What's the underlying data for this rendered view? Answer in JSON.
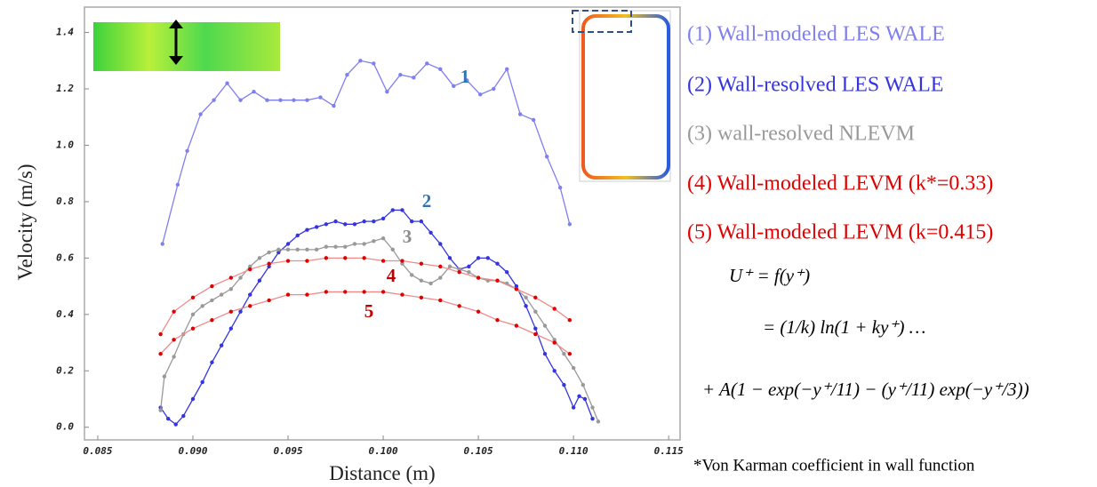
{
  "chart_data": {
    "type": "line",
    "x_label": "Distance (m)",
    "y_label": "Velocity (m/s)",
    "xlim": [
      0.0843,
      0.1156
    ],
    "ylim": [
      -0.045,
      1.49
    ],
    "xticks": [
      0.085,
      {
        "value": 0.09,
        "label": "0.090"
      },
      0.095,
      {
        "value": 0.1,
        "label": "0.100"
      },
      0.105,
      {
        "value": 0.11,
        "label": "0.110"
      },
      0.115
    ],
    "yticks": [
      {
        "value": 0,
        "label": "0.0"
      },
      0.2,
      0.4,
      0.6,
      0.8,
      {
        "value": 1,
        "label": "1.0"
      },
      1.2,
      1.4
    ],
    "grid": false,
    "series": [
      {
        "name": "(1) Wall-modeled LES WALE",
        "label": "1",
        "color": "#7f7ff0",
        "label_color": "#2e75b6",
        "x": [
          0.0884,
          0.0892,
          0.0897,
          0.0904,
          0.0911,
          0.0918,
          0.0925,
          0.0932,
          0.0939,
          0.0946,
          0.0953,
          0.096,
          0.0967,
          0.0974,
          0.0981,
          0.0988,
          0.0995,
          0.1002,
          0.1009,
          0.1016,
          0.1023,
          0.103,
          0.1037,
          0.1044,
          0.1051,
          0.1058,
          0.1065,
          0.1072,
          0.1079,
          0.1086,
          0.1093,
          0.1098
        ],
        "values": [
          0.65,
          0.86,
          0.98,
          1.11,
          1.16,
          1.22,
          1.16,
          1.19,
          1.16,
          1.16,
          1.16,
          1.16,
          1.17,
          1.14,
          1.25,
          1.3,
          1.29,
          1.19,
          1.25,
          1.24,
          1.29,
          1.27,
          1.21,
          1.23,
          1.18,
          1.2,
          1.27,
          1.11,
          1.09,
          0.96,
          0.85,
          0.72
        ]
      },
      {
        "name": "(2) Wall-resolved LES WALE",
        "label": "2",
        "color": "#3535e0",
        "label_color": "#2e75b6",
        "x": [
          0.0883,
          0.0887,
          0.0891,
          0.0895,
          0.09,
          0.0905,
          0.091,
          0.0915,
          0.092,
          0.0925,
          0.093,
          0.0935,
          0.094,
          0.0945,
          0.095,
          0.0955,
          0.096,
          0.0965,
          0.097,
          0.0975,
          0.098,
          0.0985,
          0.099,
          0.0995,
          0.1,
          0.1005,
          0.101,
          0.1015,
          0.102,
          0.1025,
          0.103,
          0.1035,
          0.104,
          0.1045,
          0.105,
          0.1055,
          0.106,
          0.1065,
          0.107,
          0.1075,
          0.108,
          0.1085,
          0.109,
          0.1095,
          0.11,
          0.1103,
          0.1106,
          0.111
        ],
        "values": [
          0.07,
          0.03,
          0.01,
          0.04,
          0.1,
          0.16,
          0.23,
          0.29,
          0.35,
          0.41,
          0.47,
          0.52,
          0.57,
          0.62,
          0.65,
          0.68,
          0.7,
          0.71,
          0.72,
          0.73,
          0.72,
          0.72,
          0.73,
          0.73,
          0.74,
          0.77,
          0.77,
          0.73,
          0.73,
          0.69,
          0.65,
          0.6,
          0.56,
          0.57,
          0.6,
          0.6,
          0.58,
          0.55,
          0.5,
          0.43,
          0.35,
          0.26,
          0.2,
          0.15,
          0.07,
          0.11,
          0.1,
          0.03
        ]
      },
      {
        "name": "(3) wall-resolved NLEVM",
        "label": "3",
        "color": "#999999",
        "label_color": "#8c8c8c",
        "x": [
          0.0883,
          0.0885,
          0.089,
          0.0895,
          0.09,
          0.0905,
          0.091,
          0.0915,
          0.092,
          0.0925,
          0.093,
          0.0935,
          0.094,
          0.0945,
          0.095,
          0.0955,
          0.096,
          0.0965,
          0.097,
          0.0975,
          0.098,
          0.0985,
          0.099,
          0.0995,
          0.1,
          0.1005,
          0.101,
          0.1015,
          0.102,
          0.1025,
          0.103,
          0.1035,
          0.104,
          0.1045,
          0.105,
          0.1055,
          0.106,
          0.1065,
          0.107,
          0.1075,
          0.108,
          0.1085,
          0.109,
          0.1095,
          0.11,
          0.1105,
          0.111,
          0.1113
        ],
        "values": [
          0.06,
          0.18,
          0.25,
          0.33,
          0.4,
          0.43,
          0.45,
          0.47,
          0.49,
          0.53,
          0.57,
          0.6,
          0.62,
          0.63,
          0.63,
          0.63,
          0.63,
          0.63,
          0.64,
          0.64,
          0.64,
          0.65,
          0.65,
          0.66,
          0.67,
          0.63,
          0.58,
          0.54,
          0.52,
          0.51,
          0.53,
          0.57,
          0.56,
          0.55,
          0.53,
          0.52,
          0.52,
          0.51,
          0.49,
          0.46,
          0.41,
          0.36,
          0.31,
          0.26,
          0.21,
          0.15,
          0.07,
          0.02
        ]
      },
      {
        "name": "(4) Wall-modeled LEVM (k*=0.33)",
        "label": "4",
        "color": "#e00000",
        "line_color": "#f08a8a",
        "label_color": "#c00000",
        "x": [
          0.0883,
          0.089,
          0.09,
          0.091,
          0.092,
          0.093,
          0.094,
          0.095,
          0.096,
          0.097,
          0.098,
          0.099,
          0.1,
          0.101,
          0.102,
          0.103,
          0.104,
          0.105,
          0.106,
          0.107,
          0.108,
          0.109,
          0.1098
        ],
        "values": [
          0.33,
          0.41,
          0.46,
          0.5,
          0.53,
          0.56,
          0.58,
          0.59,
          0.59,
          0.6,
          0.6,
          0.6,
          0.59,
          0.59,
          0.58,
          0.57,
          0.55,
          0.53,
          0.52,
          0.49,
          0.46,
          0.42,
          0.38
        ]
      },
      {
        "name": "(5) Wall-modeled LEVM (k=0.415)",
        "label": "5",
        "color": "#e00000",
        "line_color": "#f08a8a",
        "label_color": "#c00000",
        "x": [
          0.0883,
          0.089,
          0.09,
          0.091,
          0.092,
          0.093,
          0.094,
          0.095,
          0.096,
          0.097,
          0.098,
          0.099,
          0.1,
          0.101,
          0.102,
          0.103,
          0.104,
          0.105,
          0.106,
          0.107,
          0.108,
          0.109,
          0.1098
        ],
        "values": [
          0.26,
          0.31,
          0.35,
          0.38,
          0.41,
          0.43,
          0.45,
          0.47,
          0.47,
          0.48,
          0.48,
          0.48,
          0.48,
          0.47,
          0.46,
          0.45,
          0.43,
          0.41,
          0.38,
          0.36,
          0.33,
          0.3,
          0.26
        ]
      }
    ],
    "equation": [
      "U⁺ = f(y⁺)",
      "= (1/k) ln(1 + ky⁺)  …",
      "+ A(1 − exp(−y⁺/11) − (y⁺/11) exp(−y⁺/3))"
    ],
    "footnote": "*Von Karman coefficient in wall function"
  }
}
